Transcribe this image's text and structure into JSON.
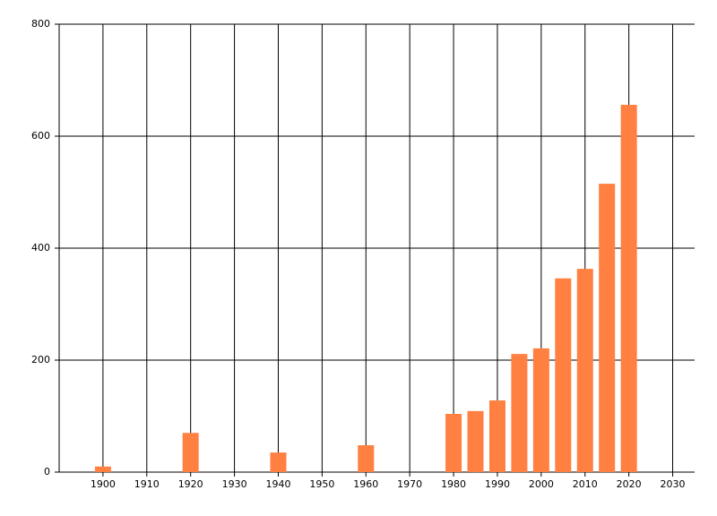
{
  "chart_data": {
    "type": "bar",
    "x": [
      1900,
      1920,
      1940,
      1960,
      1980,
      1985,
      1990,
      1995,
      2000,
      2005,
      2010,
      2015,
      2020
    ],
    "values": [
      10,
      70,
      35,
      48,
      104,
      109,
      128,
      211,
      221,
      346,
      363,
      515,
      656
    ],
    "color": "#ff8040",
    "xlim": [
      1890,
      2035
    ],
    "xticks": [
      1900,
      1910,
      1920,
      1930,
      1940,
      1950,
      1960,
      1970,
      1980,
      1990,
      2000,
      2010,
      2020,
      2030
    ],
    "ylim": [
      0,
      800
    ],
    "yticks": [
      0,
      200,
      400,
      600,
      800
    ],
    "grid": true
  }
}
